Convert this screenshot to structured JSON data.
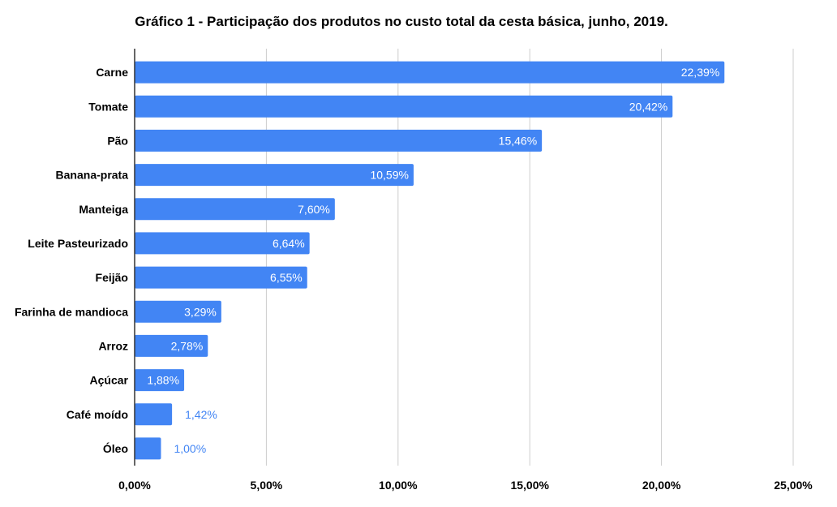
{
  "chart_data": {
    "type": "bar",
    "orientation": "horizontal",
    "title": "Gráfico 1 - Participação dos produtos no custo total da cesta básica, junho, 2019.",
    "xlabel": "",
    "ylabel": "",
    "categories": [
      "Carne",
      "Tomate",
      "Pão",
      "Banana-prata",
      "Manteiga",
      "Leite Pasteurizado",
      "Feijão",
      "Farinha de mandioca",
      "Arroz",
      "Açúcar",
      "Café moído",
      "Óleo"
    ],
    "values": [
      22.39,
      20.42,
      15.46,
      10.59,
      7.6,
      6.64,
      6.55,
      3.29,
      2.78,
      1.88,
      1.42,
      1.0
    ],
    "value_labels": [
      "22,39%",
      "20,42%",
      "15,46%",
      "10,59%",
      "7,60%",
      "6,64%",
      "6,55%",
      "3,29%",
      "2,78%",
      "1,88%",
      "1,42%",
      "1,00%"
    ],
    "xlim": [
      0,
      25
    ],
    "xticks": [
      0,
      5,
      10,
      15,
      20,
      25
    ],
    "xtick_labels": [
      "0,00%",
      "5,00%",
      "10,00%",
      "15,00%",
      "20,00%",
      "25,00%"
    ],
    "grid": "vertical",
    "legend": "none",
    "colors": {
      "bar": "#4285f4",
      "label_inside": "#ffffff",
      "label_outside": "#4285f4",
      "grid": "#cccccc",
      "axis": "#333333"
    }
  }
}
